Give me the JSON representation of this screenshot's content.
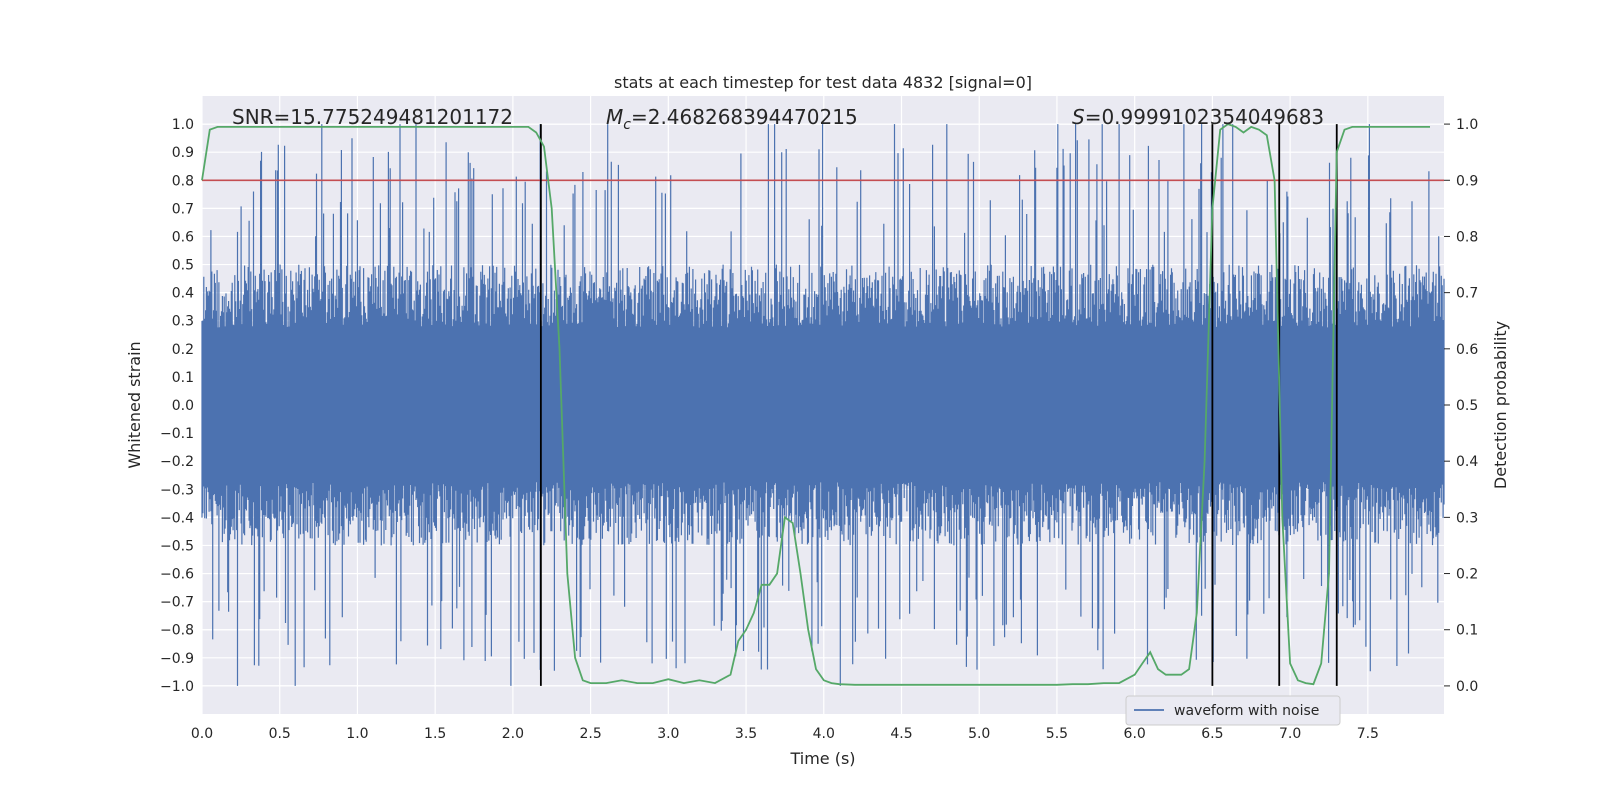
{
  "chart_data": {
    "type": "line",
    "title": "stats at each timestep for test data 4832 [signal=0]",
    "xlabel": "Time (s)",
    "ylabel_left": "Whitened strain",
    "ylabel_right": "Detection probability",
    "xlim": [
      0.0,
      7.99
    ],
    "ylim_left": [
      -1.1,
      1.1
    ],
    "ylim_right": [
      -0.05,
      1.05
    ],
    "xticks": [
      "0.0",
      "0.5",
      "1.0",
      "1.5",
      "2.0",
      "2.5",
      "3.0",
      "3.5",
      "4.0",
      "4.5",
      "5.0",
      "5.5",
      "6.0",
      "6.5",
      "7.0",
      "7.5"
    ],
    "yticks_left": [
      "1.0",
      "0.9",
      "0.8",
      "0.7",
      "0.6",
      "0.5",
      "0.4",
      "0.3",
      "0.2",
      "0.1",
      "0.0",
      "-0.1",
      "-0.2",
      "-0.3",
      "-0.4",
      "-0.5",
      "-0.6",
      "-0.7",
      "-0.8",
      "-0.9",
      "-1.0"
    ],
    "yticks_right": [
      "1.0",
      "0.9",
      "0.8",
      "0.7",
      "0.6",
      "0.5",
      "0.4",
      "0.3",
      "0.2",
      "0.1",
      "0.0"
    ],
    "grid": true,
    "annotations": {
      "snr": "SNR=15.775249481201172",
      "mc_symbol": "M",
      "mc_sub": "c",
      "mc_value": "=2.468268394470215",
      "s_symbol": "S",
      "s_value": "=0.9999102354049683"
    },
    "legend": {
      "placement": "bottom-right",
      "label": "waveform with noise"
    },
    "series": [
      {
        "name": "waveform with noise",
        "role": "noisy whitened strain, dense band roughly within -0.55..0.55 with spikes near ±1.0",
        "axis": "left",
        "color": "#4c72b0",
        "band_amplitude": 0.5,
        "peak_amplitude": 1.0
      },
      {
        "axis": "right",
        "color": "#55a868",
        "x": [
          0.0,
          0.05,
          0.1,
          0.2,
          0.5,
          1.0,
          1.5,
          2.0,
          2.05,
          2.1,
          2.15,
          2.2,
          2.25,
          2.3,
          2.35,
          2.4,
          2.45,
          2.5,
          2.6,
          2.7,
          2.8,
          2.9,
          3.0,
          3.1,
          3.2,
          3.3,
          3.4,
          3.45,
          3.5,
          3.55,
          3.6,
          3.65,
          3.7,
          3.75,
          3.8,
          3.85,
          3.9,
          3.95,
          4.0,
          4.05,
          4.1,
          4.2,
          4.5,
          5.0,
          5.3,
          5.5,
          5.6,
          5.7,
          5.8,
          5.9,
          6.0,
          6.05,
          6.1,
          6.15,
          6.2,
          6.3,
          6.35,
          6.4,
          6.45,
          6.5,
          6.55,
          6.6,
          6.65,
          6.7,
          6.75,
          6.8,
          6.85,
          6.9,
          6.95,
          7.0,
          7.05,
          7.1,
          7.15,
          7.2,
          7.25,
          7.3,
          7.35,
          7.4,
          7.45,
          7.5,
          7.6,
          7.7,
          7.8,
          7.9
        ],
        "y": [
          0.9,
          0.99,
          0.995,
          0.995,
          0.995,
          0.995,
          0.995,
          0.995,
          0.995,
          0.995,
          0.985,
          0.96,
          0.85,
          0.6,
          0.2,
          0.05,
          0.01,
          0.005,
          0.005,
          0.01,
          0.005,
          0.005,
          0.012,
          0.005,
          0.01,
          0.005,
          0.02,
          0.08,
          0.1,
          0.13,
          0.18,
          0.18,
          0.2,
          0.3,
          0.29,
          0.2,
          0.1,
          0.03,
          0.01,
          0.005,
          0.003,
          0.002,
          0.002,
          0.002,
          0.002,
          0.002,
          0.003,
          0.003,
          0.005,
          0.005,
          0.02,
          0.04,
          0.06,
          0.03,
          0.02,
          0.02,
          0.03,
          0.13,
          0.4,
          0.85,
          0.99,
          1.0,
          0.995,
          0.985,
          0.995,
          0.99,
          0.98,
          0.9,
          0.3,
          0.04,
          0.01,
          0.005,
          0.003,
          0.04,
          0.2,
          0.95,
          0.99,
          0.995,
          0.995,
          0.995,
          0.995,
          0.995,
          0.995,
          0.995
        ]
      }
    ],
    "threshold": {
      "axis": "right",
      "value": 0.9,
      "color": "#c44e52"
    },
    "vlines": {
      "x": [
        2.18,
        6.5,
        6.93,
        7.3
      ],
      "color": "#000000",
      "ymin": 0.0,
      "ymax": 1.0
    }
  }
}
